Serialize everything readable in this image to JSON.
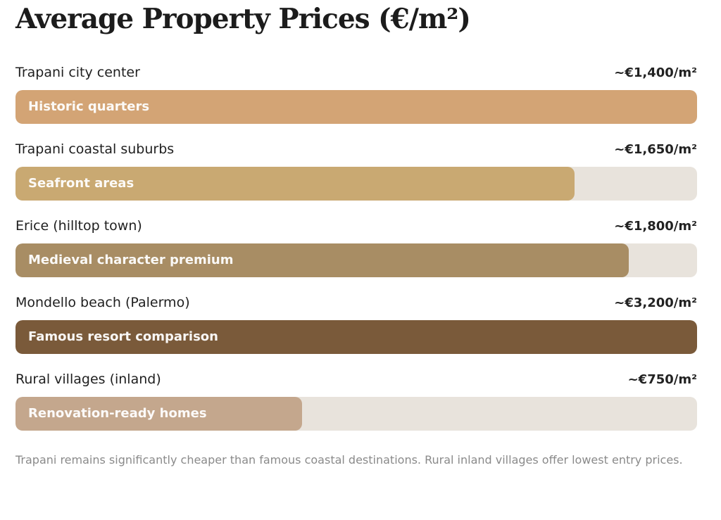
{
  "title": "Average Property Prices (€/m²)",
  "chart_data": {
    "type": "bar",
    "orientation": "horizontal",
    "title": "Average Property Prices (€/m²)",
    "unit": "€/m²",
    "categories": [
      "Trapani city center",
      "Trapani coastal suburbs",
      "Erice (hilltop town)",
      "Mondello beach (Palermo)",
      "Rural villages (inland)"
    ],
    "values": [
      1400,
      1650,
      1800,
      3200,
      750
    ],
    "value_labels": [
      "~€1,400/m²",
      "~€1,650/m²",
      "~€1,800/m²",
      "~€3,200/m²",
      "~€750/m²"
    ],
    "bar_labels": [
      "Historic quarters",
      "Seafront areas",
      "Medieval character premium",
      "Famous resort comparison",
      "Renovation-ready homes"
    ],
    "fill_percent": [
      100,
      82,
      90,
      100,
      42
    ],
    "colors": [
      "#d3a475",
      "#c9a972",
      "#a88d64",
      "#7a5a3a",
      "#c4a78d"
    ],
    "track_color": "#e8e3dc",
    "grid": false,
    "legend": "none"
  },
  "note": "Trapani remains significantly cheaper than famous coastal destinations. Rural inland villages offer lowest entry prices."
}
